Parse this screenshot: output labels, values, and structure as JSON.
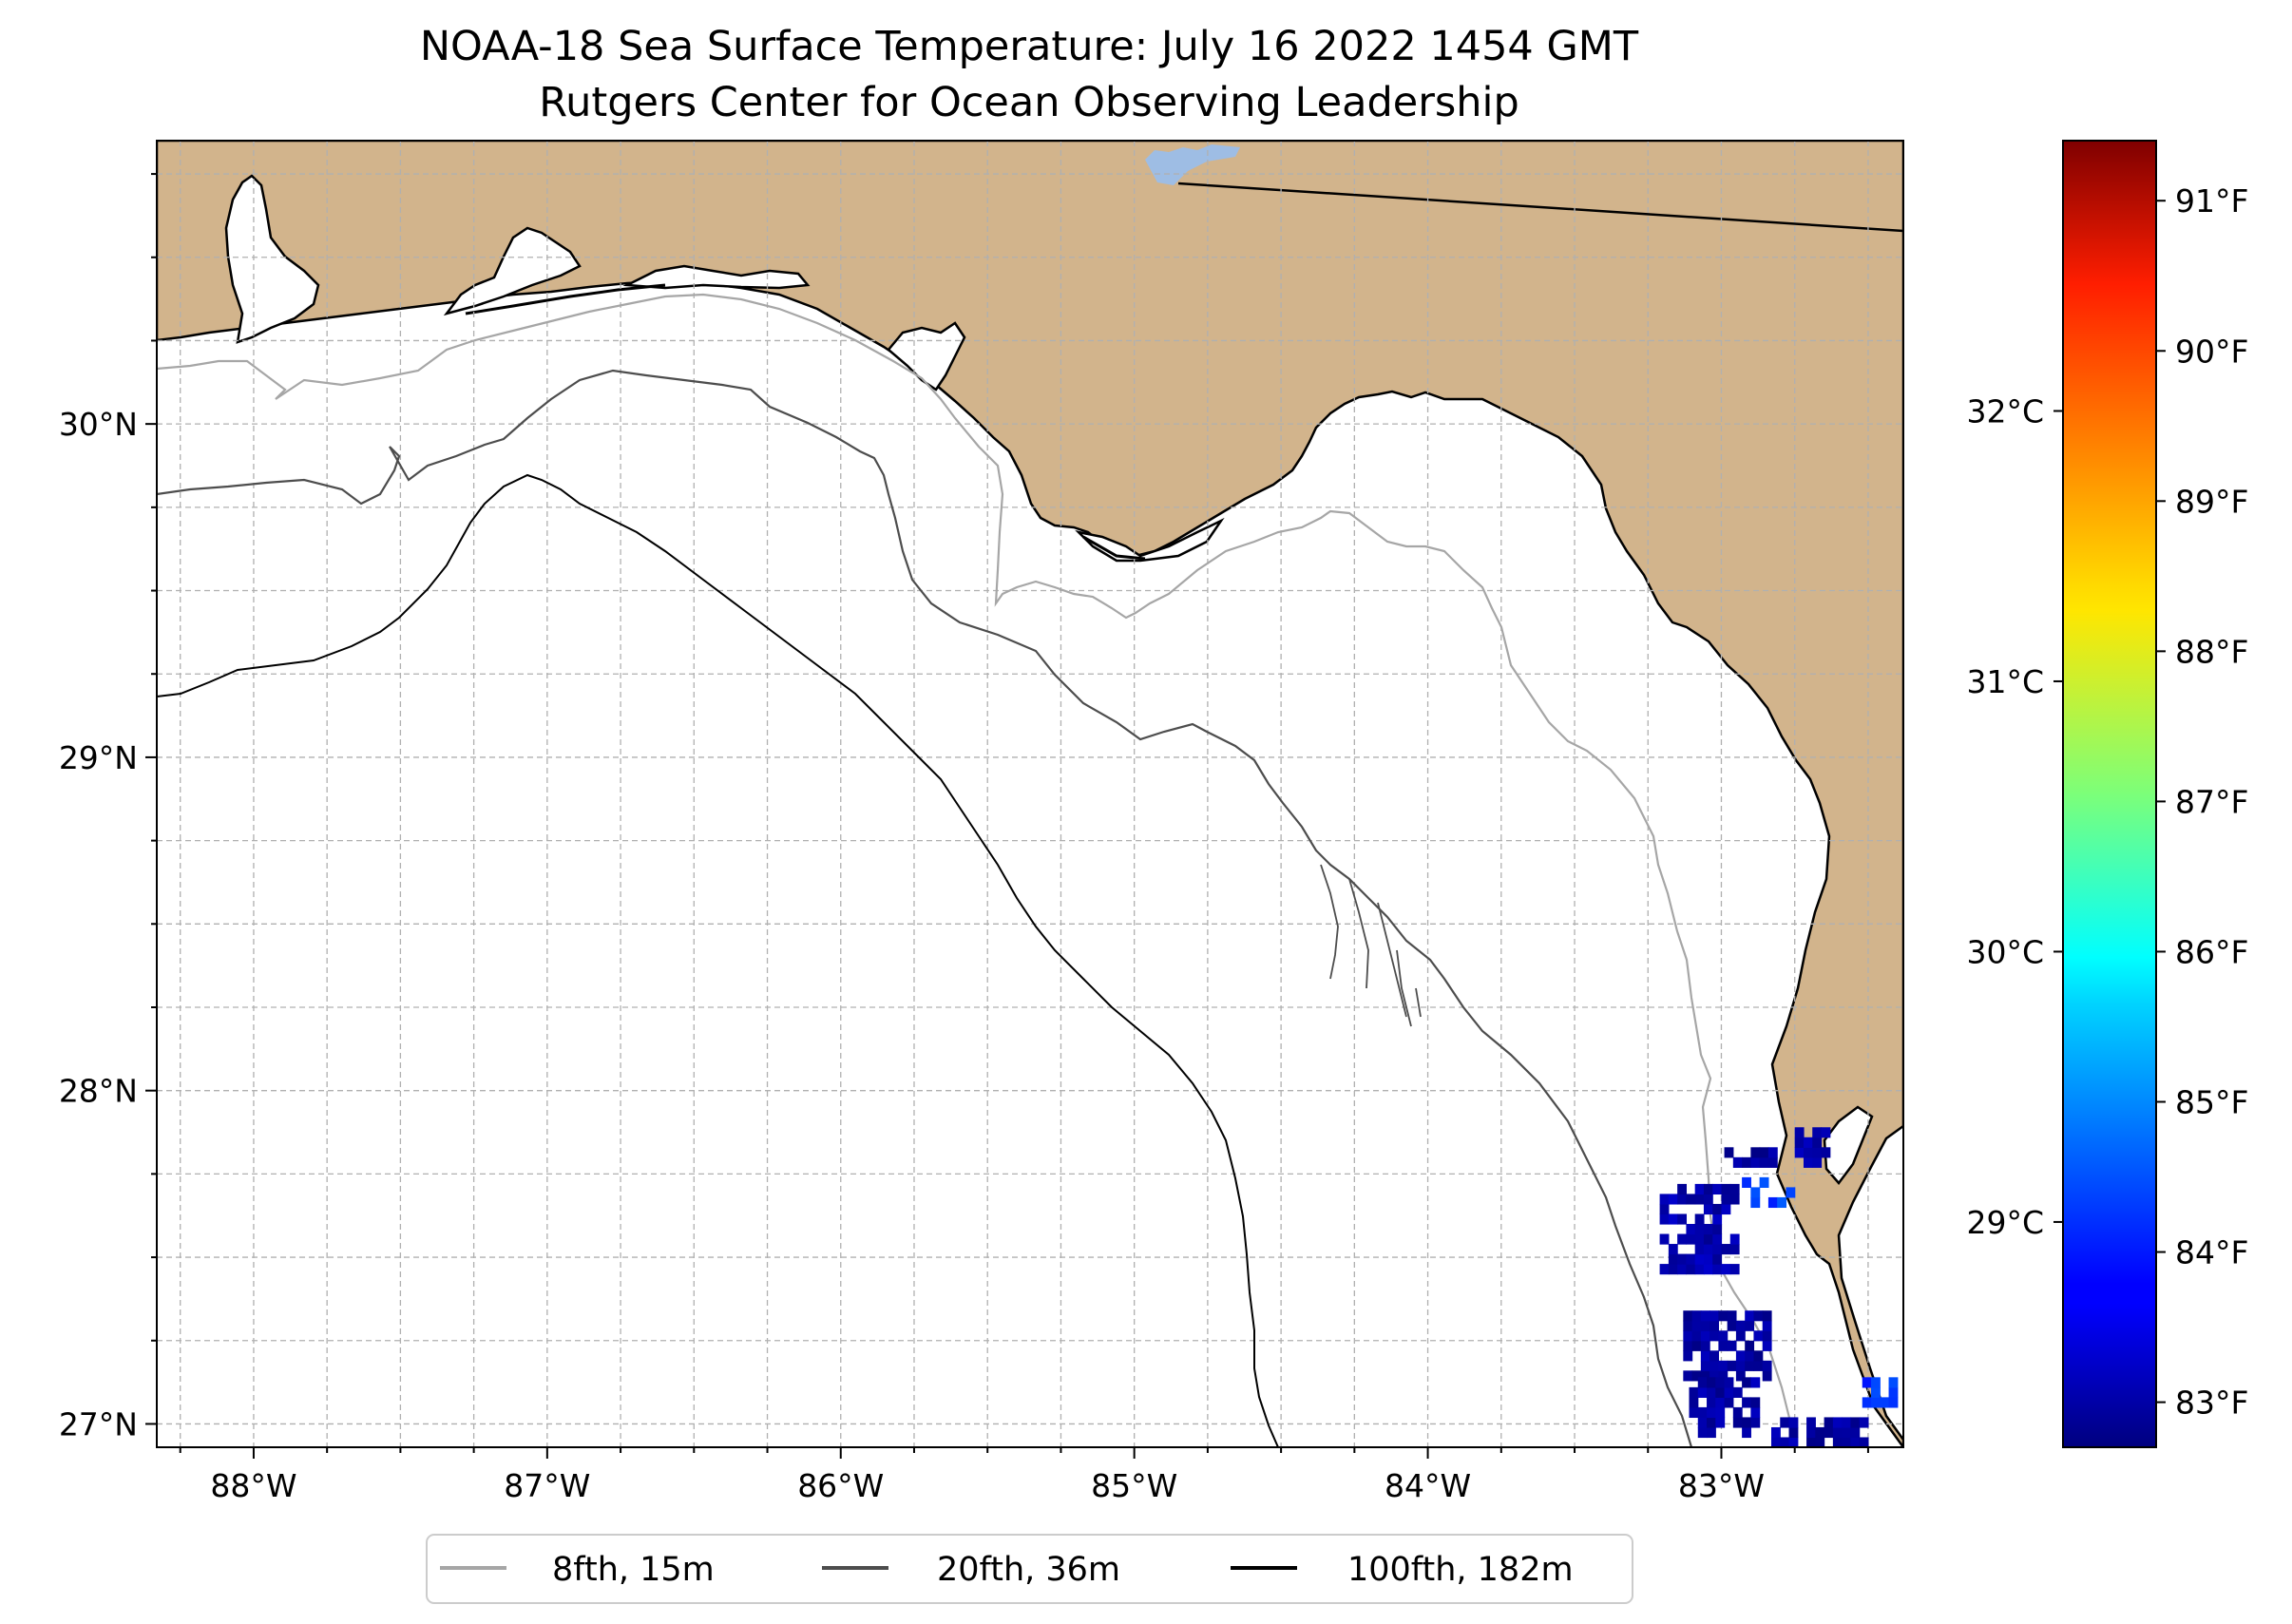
{
  "title": {
    "line1": "NOAA-18 Sea Surface Temperature: July 16 2022 1454 GMT",
    "line2": "Rutgers Center for Ocean Observing Leadership"
  },
  "map": {
    "lon_range": [
      -88.33,
      -82.38
    ],
    "lat_range": [
      26.93,
      30.85
    ],
    "land_color": "#d2b48c",
    "ocean_color": "#ffffff",
    "lake_color": "#9ebde4",
    "gridlines": true,
    "lon_ticks": [
      -88,
      -87,
      -86,
      -85,
      -84,
      -83
    ],
    "lon_tick_labels": [
      "88°W",
      "87°W",
      "86°W",
      "85°W",
      "84°W",
      "83°W"
    ],
    "lat_ticks": [
      27,
      28,
      29,
      30
    ],
    "lat_tick_labels": [
      "27°N",
      "28°N",
      "29°N",
      "30°N"
    ]
  },
  "colorbar": {
    "colormap": "jet",
    "vmin_f": 82.7,
    "vmax_f": 91.4,
    "celsius_ticks": [
      29,
      30,
      31,
      32
    ],
    "celsius_labels": [
      "29°C",
      "30°C",
      "31°C",
      "32°C"
    ],
    "fahrenheit_ticks": [
      83,
      84,
      85,
      86,
      87,
      88,
      89,
      90,
      91
    ],
    "fahrenheit_labels": [
      "83°F",
      "84°F",
      "85°F",
      "86°F",
      "87°F",
      "88°F",
      "89°F",
      "90°F",
      "91°F"
    ]
  },
  "legend": {
    "placement": "bottom-center",
    "items": [
      {
        "label": "8fth, 15m",
        "color": "#a6a6a6"
      },
      {
        "label": "20fth, 36m",
        "color": "#4d4d4d"
      },
      {
        "label": "100fth, 182m",
        "color": "#000000"
      }
    ]
  },
  "chart_data": {
    "type": "heatmap",
    "variable": "Sea Surface Temperature",
    "units_primary": "°F",
    "units_secondary": "°C",
    "sst_patches": [
      {
        "lon": [
          -83.21,
          -82.95
        ],
        "lat": [
          27.45,
          27.72
        ],
        "temp_f": 83.1
      },
      {
        "lon": [
          -83.13,
          -82.84
        ],
        "lat": [
          27.13,
          27.33
        ],
        "temp_f": 83.0
      },
      {
        "lon": [
          -83.11,
          -82.89
        ],
        "lat": [
          26.96,
          27.12
        ],
        "temp_f": 83.0
      },
      {
        "lon": [
          -82.83,
          -82.52
        ],
        "lat": [
          26.93,
          27.02
        ],
        "temp_f": 83.0
      },
      {
        "lon": [
          -82.99,
          -82.83
        ],
        "lat": [
          27.77,
          27.83
        ],
        "temp_f": 83.0
      },
      {
        "lon": [
          -82.75,
          -82.63
        ],
        "lat": [
          27.77,
          27.88
        ],
        "temp_f": 83.1
      },
      {
        "lon": [
          -82.93,
          -82.76
        ],
        "lat": [
          27.65,
          27.74
        ],
        "temp_f": 84.3
      },
      {
        "lon": [
          -82.52,
          -82.4
        ],
        "lat": [
          27.05,
          27.13
        ],
        "temp_f": 84.2
      }
    ],
    "legend_entries": [
      "8fth, 15m",
      "20fth, 36m",
      "100fth, 182m"
    ]
  }
}
